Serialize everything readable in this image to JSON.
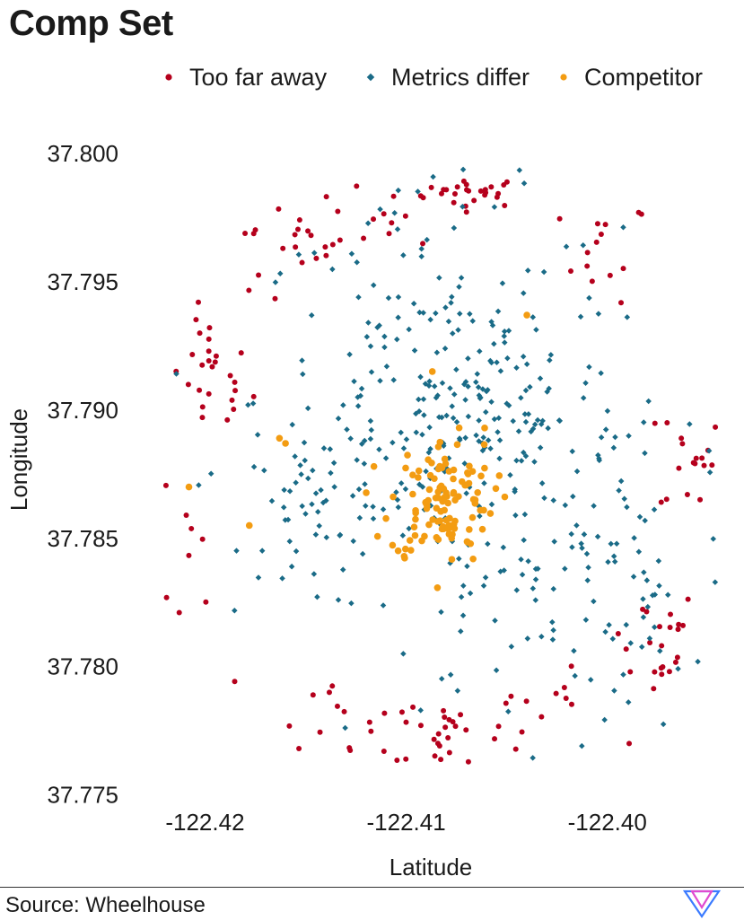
{
  "chart_data": {
    "type": "scatter",
    "title": "Comp Set",
    "xlabel": "Latitude",
    "ylabel": "Longitude",
    "xlim": [
      -122.4235,
      -122.3945
    ],
    "ylim": [
      37.7745,
      37.8015
    ],
    "x_ticks": [
      -122.42,
      -122.41,
      -122.4
    ],
    "x_tick_labels": [
      "-122.42",
      "-122.41",
      "-122.40"
    ],
    "y_ticks": [
      37.775,
      37.78,
      37.785,
      37.79,
      37.795,
      37.8
    ],
    "y_tick_labels": [
      "37.775",
      "37.780",
      "37.785",
      "37.790",
      "37.795",
      "37.800"
    ],
    "grid": false,
    "legend_position": "top",
    "series": [
      {
        "name": "Too far away",
        "color": "#b5001c",
        "marker": "circle",
        "clusters": [
          {
            "center": [
              -122.4066,
              37.7985
            ],
            "spread": [
              0.0013,
              0.0003
            ],
            "count": 25
          },
          {
            "center": [
              -122.4118,
              37.7971
            ],
            "spread": [
              0.0018,
              0.0008
            ],
            "count": 18
          },
          {
            "center": [
              -122.4001,
              37.7962
            ],
            "spread": [
              0.0011,
              0.001
            ],
            "count": 14
          },
          {
            "center": [
              -122.4165,
              37.796
            ],
            "spread": [
              0.0014,
              0.0011
            ],
            "count": 14
          },
          {
            "center": [
              -122.4197,
              37.7912
            ],
            "spread": [
              0.001,
              0.0012
            ],
            "count": 26
          },
          {
            "center": [
              -122.421,
              37.7838
            ],
            "spread": [
              0.0008,
              0.0015
            ],
            "count": 8
          },
          {
            "center": [
              -122.3958,
              37.7882
            ],
            "spread": [
              0.0008,
              0.0012
            ],
            "count": 18
          },
          {
            "center": [
              -122.3978,
              37.781
            ],
            "spread": [
              0.0012,
              0.0011
            ],
            "count": 22
          },
          {
            "center": [
              -122.408,
              37.7775
            ],
            "spread": [
              0.0022,
              0.0009
            ],
            "count": 30
          },
          {
            "center": [
              -122.414,
              37.7785
            ],
            "spread": [
              0.0013,
              0.0008
            ],
            "count": 12
          },
          {
            "center": [
              -122.403,
              37.7784
            ],
            "spread": [
              0.0015,
              0.0007
            ],
            "count": 10
          }
        ]
      },
      {
        "name": "Metrics differ",
        "color": "#1a6b87",
        "marker": "diamond",
        "clusters": [
          {
            "center": [
              -122.4084,
              37.7905
            ],
            "spread": [
              0.0045,
              0.0038
            ],
            "count": 230
          },
          {
            "center": [
              -122.414,
              37.786
            ],
            "spread": [
              0.002,
              0.0015
            ],
            "count": 45
          },
          {
            "center": [
              -122.406,
              37.7902
            ],
            "spread": [
              0.0015,
              0.0012
            ],
            "count": 45
          },
          {
            "center": [
              -122.404,
              37.7825
            ],
            "spread": [
              0.0045,
              0.0025
            ],
            "count": 80
          },
          {
            "center": [
              -122.399,
              37.785
            ],
            "spread": [
              0.0025,
              0.004
            ],
            "count": 50
          }
        ]
      },
      {
        "name": "Competitor",
        "color": "#f39c12",
        "marker": "circle",
        "clusters": [
          {
            "center": [
              -122.4082,
              37.7865
            ],
            "spread": [
              0.0013,
              0.0012
            ],
            "count": 115
          }
        ],
        "points": [
          {
            "x": -122.4163,
            "y": 37.7889
          },
          {
            "x": -122.416,
            "y": 37.7887
          },
          {
            "x": -122.4178,
            "y": 37.7855
          },
          {
            "x": -122.4208,
            "y": 37.787
          },
          {
            "x": -122.4087,
            "y": 37.7915
          },
          {
            "x": -122.4101,
            "y": 37.7843
          },
          {
            "x": -122.404,
            "y": 37.7937
          },
          {
            "x": -122.4061,
            "y": 37.7893
          }
        ]
      }
    ]
  },
  "footer": {
    "source": "Source: Wheelhouse"
  },
  "logo": {
    "name": "wheelhouse-logo",
    "color_a": "#e04bd0",
    "color_b": "#3b7bff"
  }
}
